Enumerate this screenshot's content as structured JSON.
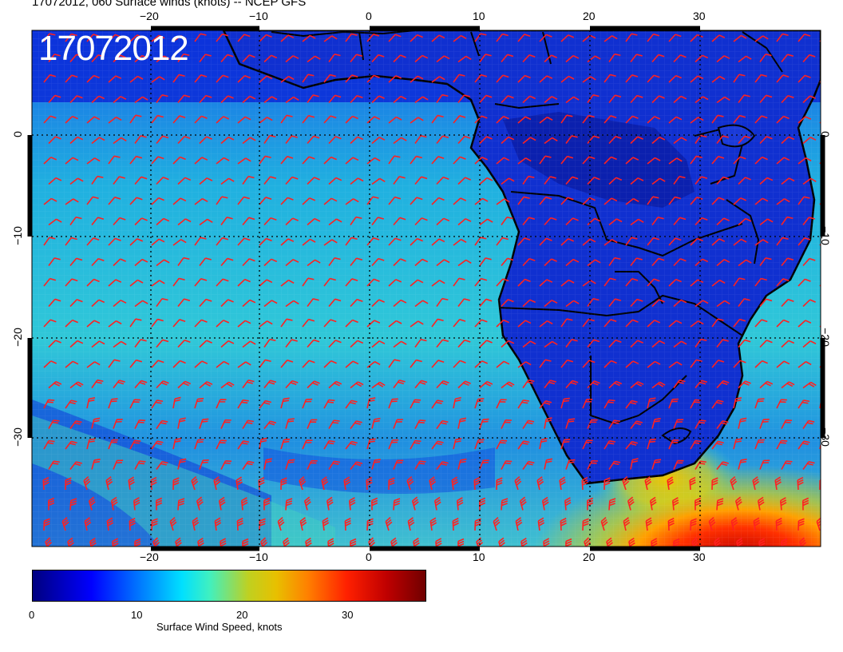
{
  "title": "17072012, 060 Surface winds (knots) -- NCEP GFS",
  "date_stamp": "17072012",
  "map": {
    "lon_range": [
      -30,
      40
    ],
    "lat_range": [
      -40,
      10
    ],
    "top_lon_labels": [
      "−20",
      "−10",
      "0",
      "10",
      "20",
      "30"
    ],
    "bottom_lon_labels": [
      "−20",
      "−10",
      "0",
      "10",
      "20",
      "30"
    ],
    "lat_labels": [
      "0",
      "−10",
      "−20",
      "−30"
    ],
    "right_lat_labels": [
      "0",
      "−10",
      "−20",
      "−30"
    ],
    "barb_color": "#ff2020",
    "coast_color": "#000000"
  },
  "colorbar": {
    "label": "Surface Wind Speed, knots",
    "ticks": [
      "0",
      "10",
      "20",
      "30"
    ],
    "range": [
      0,
      37
    ]
  }
}
